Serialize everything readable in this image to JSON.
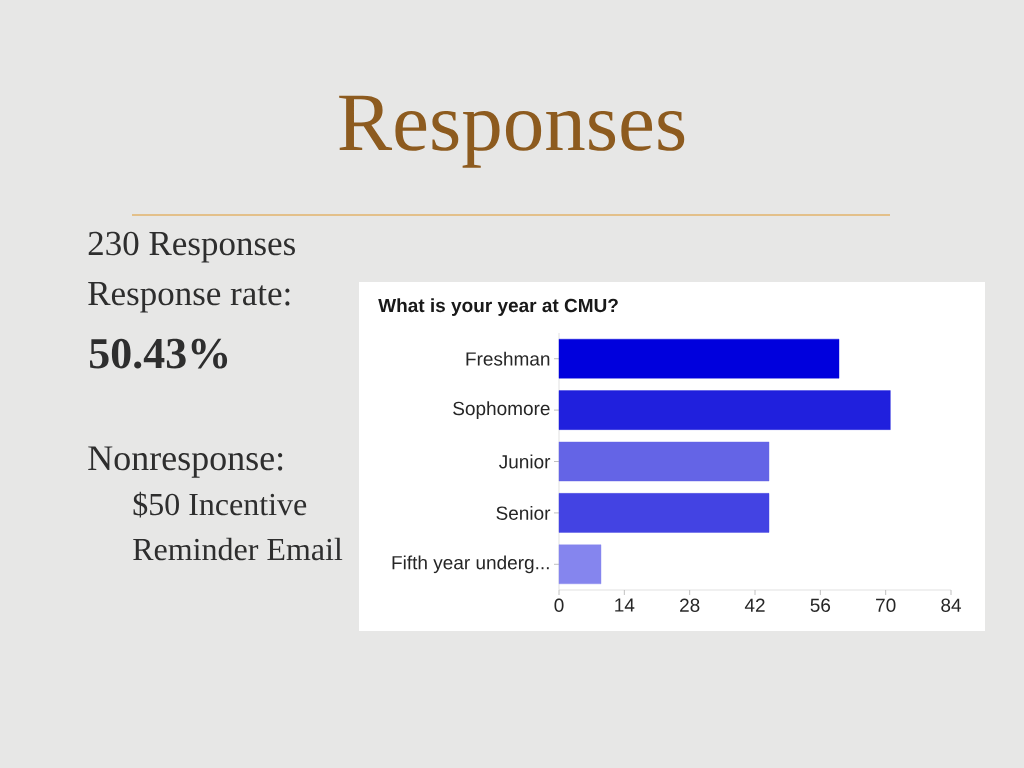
{
  "chart_data": {
    "type": "bar",
    "orientation": "horizontal",
    "title": "Responses",
    "subtitle": "What is your year at CMU?",
    "categories": [
      "Freshman",
      "Sophomore",
      "Junior",
      "Senior",
      "Fifth year underg..."
    ],
    "values": [
      60,
      71,
      45,
      45,
      9
    ],
    "colors": [
      "#0000dd",
      "#2020dd",
      "#6464e6",
      "#4343e3",
      "#8585ee"
    ],
    "xlim": [
      0,
      84
    ],
    "xticks": [
      0,
      14,
      28,
      42,
      56,
      70,
      84
    ],
    "annotations": [
      "230 Responses",
      "Response rate:",
      "50.43%",
      "Nonresponse:",
      "$50 Incentive",
      "Reminder Email"
    ]
  }
}
